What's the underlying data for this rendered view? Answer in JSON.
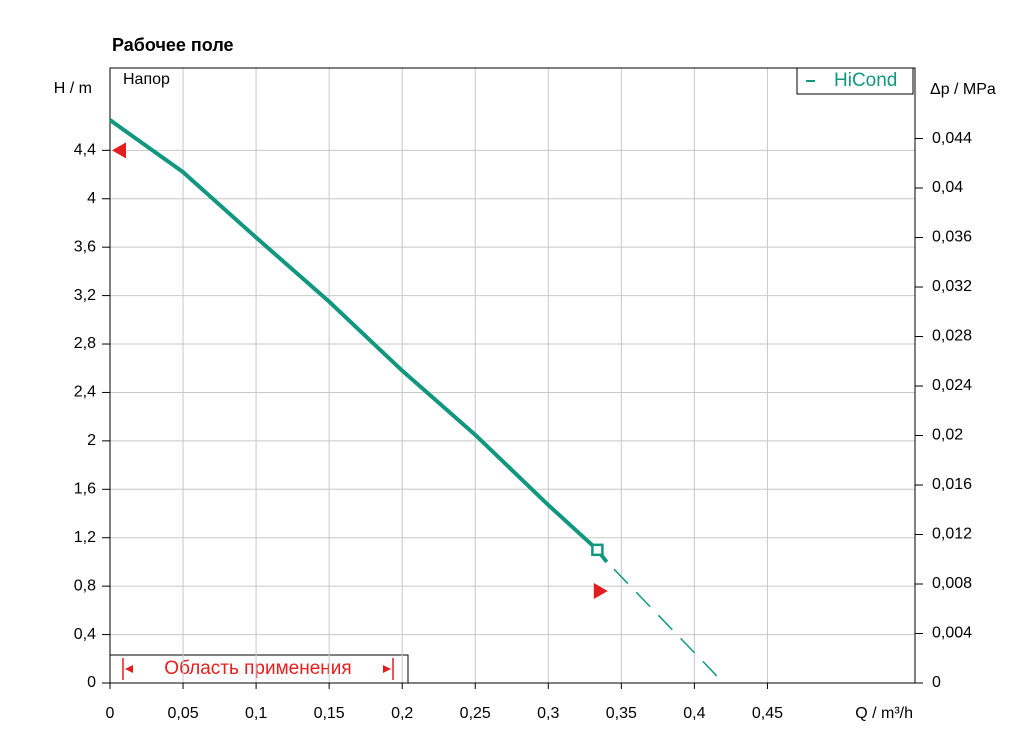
{
  "chart_data": {
    "type": "line",
    "title": "Рабочее поле",
    "ylabel": "H / m",
    "y2label": "Δp / MPa",
    "xlabel": "Q / m³/h",
    "inner_label": "Напор",
    "annotation": "Область применения",
    "xlim": [
      0,
      0.551
    ],
    "ylim": [
      0,
      5.08
    ],
    "y2lim": [
      0,
      0.0497
    ],
    "xticks": [
      0,
      {
        "value": 0.05,
        "label": "0,05"
      },
      {
        "value": 0.1,
        "label": "0,1"
      },
      {
        "value": 0.15,
        "label": "0,15"
      },
      {
        "value": 0.2,
        "label": "0,2"
      },
      {
        "value": 0.25,
        "label": "0,25"
      },
      {
        "value": 0.3,
        "label": "0,3"
      },
      {
        "value": 0.35,
        "label": "0,35"
      },
      {
        "value": 0.4,
        "label": "0,4"
      },
      {
        "value": 0.45,
        "label": "0,45"
      }
    ],
    "yticks": [
      0,
      {
        "value": 0.4,
        "label": "0,4"
      },
      {
        "value": 0.8,
        "label": "0,8"
      },
      {
        "value": 1.2,
        "label": "1,2"
      },
      {
        "value": 1.6,
        "label": "1,6"
      },
      2,
      {
        "value": 2.4,
        "label": "2,4"
      },
      {
        "value": 2.8,
        "label": "2,8"
      },
      {
        "value": 3.2,
        "label": "3,2"
      },
      {
        "value": 3.6,
        "label": "3,6"
      },
      4,
      {
        "value": 4.4,
        "label": "4,4"
      }
    ],
    "y2ticks": [
      0,
      {
        "value": 0.004,
        "label": "0,004"
      },
      {
        "value": 0.008,
        "label": "0,008"
      },
      {
        "value": 0.012,
        "label": "0,012"
      },
      {
        "value": 0.016,
        "label": "0,016"
      },
      {
        "value": 0.02,
        "label": "0,02"
      },
      {
        "value": 0.024,
        "label": "0,024"
      },
      {
        "value": 0.028,
        "label": "0,028"
      },
      {
        "value": 0.032,
        "label": "0,032"
      },
      {
        "value": 0.036,
        "label": "0,036"
      },
      {
        "value": 0.04,
        "label": "0,04"
      },
      {
        "value": 0.044,
        "label": "0,044"
      }
    ],
    "grid": true,
    "series": [
      {
        "name": "HiCond",
        "color": "#12977f",
        "x": [
          0,
          0.05,
          0.1,
          0.15,
          0.2,
          0.25,
          0.3,
          0.3336,
          0.34
        ],
        "values": [
          4.65,
          4.22,
          3.68,
          3.15,
          2.58,
          2.05,
          1.47,
          1.1,
          1.0
        ]
      }
    ],
    "extension": {
      "color": "#12977f",
      "x": [
        0.345,
        0.42
      ],
      "values": [
        0.94,
        0
      ]
    },
    "operating_point": {
      "x": 0.3336,
      "y": 1.1
    },
    "limit_markers": {
      "color": "#e41e1e",
      "x": [
        0,
        0.338
      ],
      "values": [
        4.4,
        0.76
      ]
    }
  }
}
